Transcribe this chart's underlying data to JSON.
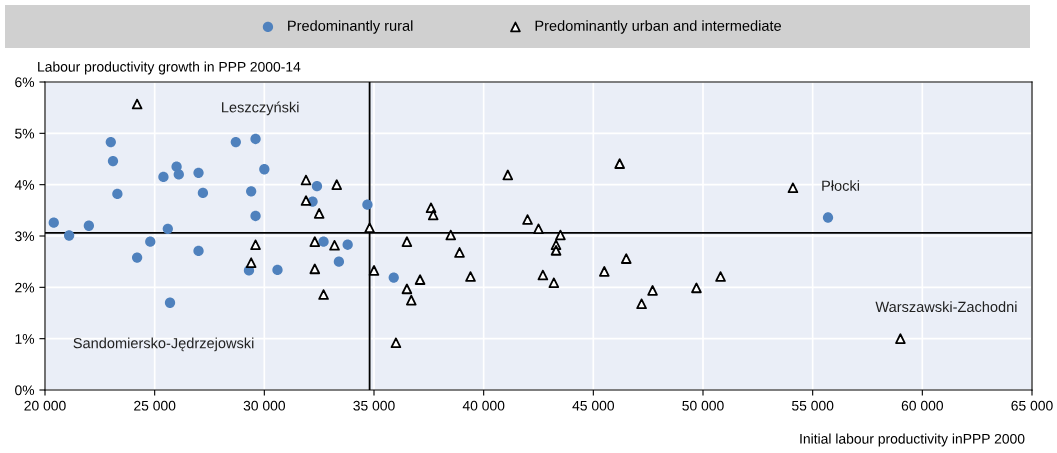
{
  "chart_data": {
    "type": "scatter",
    "xlabel": "Initial labour productivity inPPP 2000",
    "ylabel": "Labour productivity growth in PPP 2000-14",
    "series": [
      {
        "name": "Predominantly rural",
        "color": "#4f81bd",
        "marker": "circle",
        "x": [
          20400,
          21100,
          22000,
          23000,
          23100,
          23300,
          24200,
          24800,
          25400,
          25600,
          25700,
          26000,
          26100,
          27000,
          27000,
          27200,
          28700,
          29400,
          29300,
          29600,
          29600,
          30000,
          30600,
          32400,
          32200,
          32700,
          33400,
          33800,
          34700,
          35900,
          55700
        ],
        "values": [
          3.26,
          3.01,
          3.2,
          4.83,
          4.46,
          3.82,
          2.58,
          2.89,
          4.15,
          3.14,
          1.7,
          4.35,
          4.2,
          4.23,
          2.71,
          3.84,
          4.83,
          3.87,
          2.33,
          3.39,
          4.89,
          4.3,
          2.34,
          3.97,
          3.67,
          2.89,
          2.5,
          2.83,
          3.61,
          2.19,
          3.36
        ]
      },
      {
        "name": "Predominantly urban and intermediate",
        "color": "#000000",
        "marker": "triangle",
        "x": [
          24200,
          31900,
          33300,
          31900,
          32500,
          34800,
          29600,
          32300,
          33200,
          29400,
          32300,
          32700,
          35000,
          37600,
          37700,
          36500,
          38500,
          38900,
          39400,
          36500,
          36700,
          37100,
          36000,
          41100,
          42000,
          42500,
          43500,
          43300,
          43300,
          42700,
          43200,
          46200,
          46500,
          45500,
          47200,
          47700,
          49700,
          50800,
          54100,
          59000
        ],
        "values": [
          5.57,
          4.09,
          4.0,
          3.69,
          3.44,
          3.16,
          2.83,
          2.89,
          2.82,
          2.48,
          2.36,
          1.86,
          2.33,
          3.55,
          3.41,
          2.89,
          3.02,
          2.68,
          2.21,
          1.97,
          1.75,
          2.15,
          0.92,
          4.19,
          3.32,
          3.14,
          3.02,
          2.83,
          2.72,
          2.24,
          2.09,
          4.41,
          2.56,
          2.31,
          1.68,
          1.94,
          1.99,
          2.21,
          3.94,
          1.0
        ]
      }
    ],
    "xlim": [
      20000,
      65000
    ],
    "xticks": [
      {
        "value": 20000,
        "label": "20 000"
      },
      {
        "value": 25000,
        "label": "25 000"
      },
      {
        "value": 30000,
        "label": "30 000"
      },
      {
        "value": 35000,
        "label": "35 000"
      },
      {
        "value": 40000,
        "label": "40 000"
      },
      {
        "value": 45000,
        "label": "45 000"
      },
      {
        "value": 50000,
        "label": "50 000"
      },
      {
        "value": 55000,
        "label": "55 000"
      },
      {
        "value": 60000,
        "label": "60 000"
      },
      {
        "value": 65000,
        "label": "65 000"
      }
    ],
    "ylim": [
      0,
      6
    ],
    "yticks": [
      {
        "value": 0,
        "label": "0%"
      },
      {
        "value": 1,
        "label": "1%"
      },
      {
        "value": 2,
        "label": "2%"
      },
      {
        "value": 3,
        "label": "3%"
      },
      {
        "value": 4,
        "label": "4%"
      },
      {
        "value": 5,
        "label": "5%"
      },
      {
        "value": 6,
        "label": "6%"
      }
    ],
    "ref_lines": [
      {
        "axis": "x",
        "value": 34800,
        "color": "#000000"
      },
      {
        "axis": "y",
        "value": 3.06,
        "color": "#000000"
      }
    ],
    "annotations": [
      {
        "text": "Leszczyński",
        "x": 29600,
        "y": 4.89
      },
      {
        "text": "Sandomiersko-Jędrzejowski",
        "x": 25700,
        "y": 1.7
      },
      {
        "text": "Płocki",
        "x": 55700,
        "y": 3.36
      },
      {
        "text": "Warszawski-Zachodni",
        "x": 59000,
        "y": 1.0
      }
    ],
    "grid": true,
    "legend": "top"
  }
}
